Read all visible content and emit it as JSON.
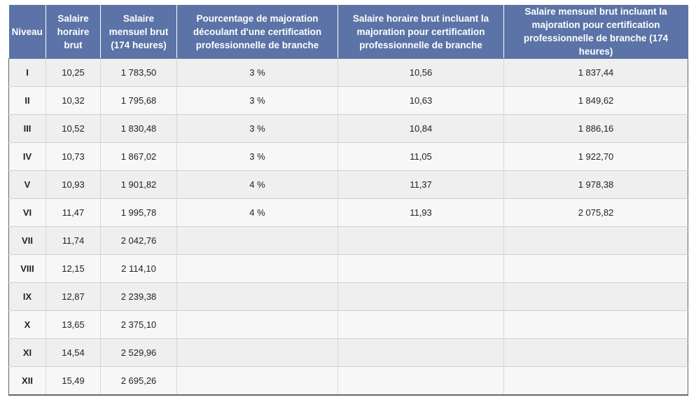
{
  "table": {
    "headers": [
      "Niveau",
      "Salaire horaire brut",
      "Salaire mensuel brut (174 heures)",
      "Pourcentage de majoration découlant d'une certification professionnelle de branche",
      "Salaire horaire brut incluant la majoration pour certification professionnelle de branche",
      "Salaire mensuel brut incluant la majoration pour certification professionnelle de branche (174 heures)"
    ],
    "rows": [
      [
        "I",
        "10,25",
        "1 783,50",
        "3 %",
        "10,56",
        "1 837,44"
      ],
      [
        "II",
        "10,32",
        "1 795,68",
        "3 %",
        "10,63",
        "1 849,62"
      ],
      [
        "III",
        "10,52",
        "1 830,48",
        "3 %",
        "10,84",
        "1 886,16"
      ],
      [
        "IV",
        "10,73",
        "1 867,02",
        "3 %",
        "11,05",
        "1 922,70"
      ],
      [
        "V",
        "10,93",
        "1 901,82",
        "4 %",
        "11,37",
        "1 978,38"
      ],
      [
        "VI",
        "11,47",
        "1 995,78",
        "4 %",
        "11,93",
        "2 075,82"
      ],
      [
        "VII",
        "11,74",
        "2 042,76",
        "",
        "",
        ""
      ],
      [
        "VIII",
        "12,15",
        "2 114,10",
        "",
        "",
        ""
      ],
      [
        "IX",
        "12,87",
        "2 239,38",
        "",
        "",
        ""
      ],
      [
        "X",
        "13,65",
        "2 375,10",
        "",
        "",
        ""
      ],
      [
        "XI",
        "14,54",
        "2 529,96",
        "",
        "",
        ""
      ],
      [
        "XII",
        "15,49",
        "2 695,26",
        "",
        "",
        ""
      ]
    ]
  },
  "colors": {
    "header_bg": "#5b73a6",
    "header_text": "#ffffff",
    "row_odd": "#efefef",
    "row_even": "#f7f7f7"
  }
}
